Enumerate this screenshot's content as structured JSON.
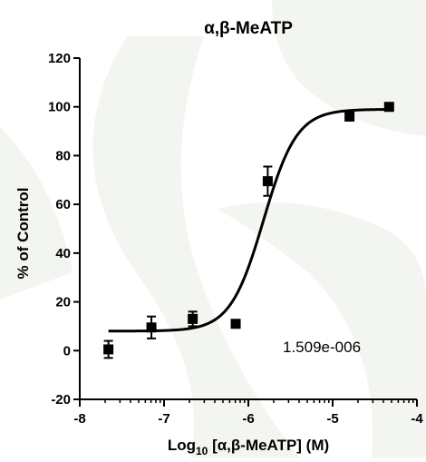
{
  "chart_data": {
    "type": "scatter",
    "title": "α,β-MeATP",
    "xlabel": {
      "prefix": "Log",
      "sub": "10",
      "suffix": " [α,β-MeATP] (M)"
    },
    "ylabel": "% of Control",
    "xlim": [
      -8,
      -4
    ],
    "ylim": [
      -20,
      120
    ],
    "x_ticks": [
      -8,
      -7,
      -6,
      -5,
      -4
    ],
    "x_tick_labels": [
      "-8",
      "-7",
      "-6",
      "-5",
      "-4"
    ],
    "x_minor_log_ticks": true,
    "y_ticks": [
      -20,
      0,
      20,
      40,
      60,
      80,
      100,
      120
    ],
    "y_tick_labels": [
      "-20",
      "0",
      "20",
      "40",
      "60",
      "80",
      "100",
      "120"
    ],
    "grid": false,
    "series": [
      {
        "marker": "square",
        "points": [
          {
            "x": -7.66,
            "y": 0.5,
            "err": 3.5
          },
          {
            "x": -7.15,
            "y": 9.5,
            "err": 4.5
          },
          {
            "x": -6.66,
            "y": 13,
            "err": 3.0
          },
          {
            "x": -6.15,
            "y": 11,
            "err": 1.5
          },
          {
            "x": -5.77,
            "y": 69.5,
            "err": 6.0
          },
          {
            "x": -4.8,
            "y": 96,
            "err": 1.0
          },
          {
            "x": -4.33,
            "y": 100,
            "err": 0.5
          }
        ]
      }
    ],
    "fit": {
      "model": "sigmoidal dose-response",
      "bottom": 8,
      "top": 99,
      "logEC50": -5.82,
      "hill": 2.2
    },
    "annotation": "1.509e-006",
    "background_watermark": true,
    "colors": {
      "ink": "#000000",
      "watermark": "#f2f5f0"
    }
  }
}
